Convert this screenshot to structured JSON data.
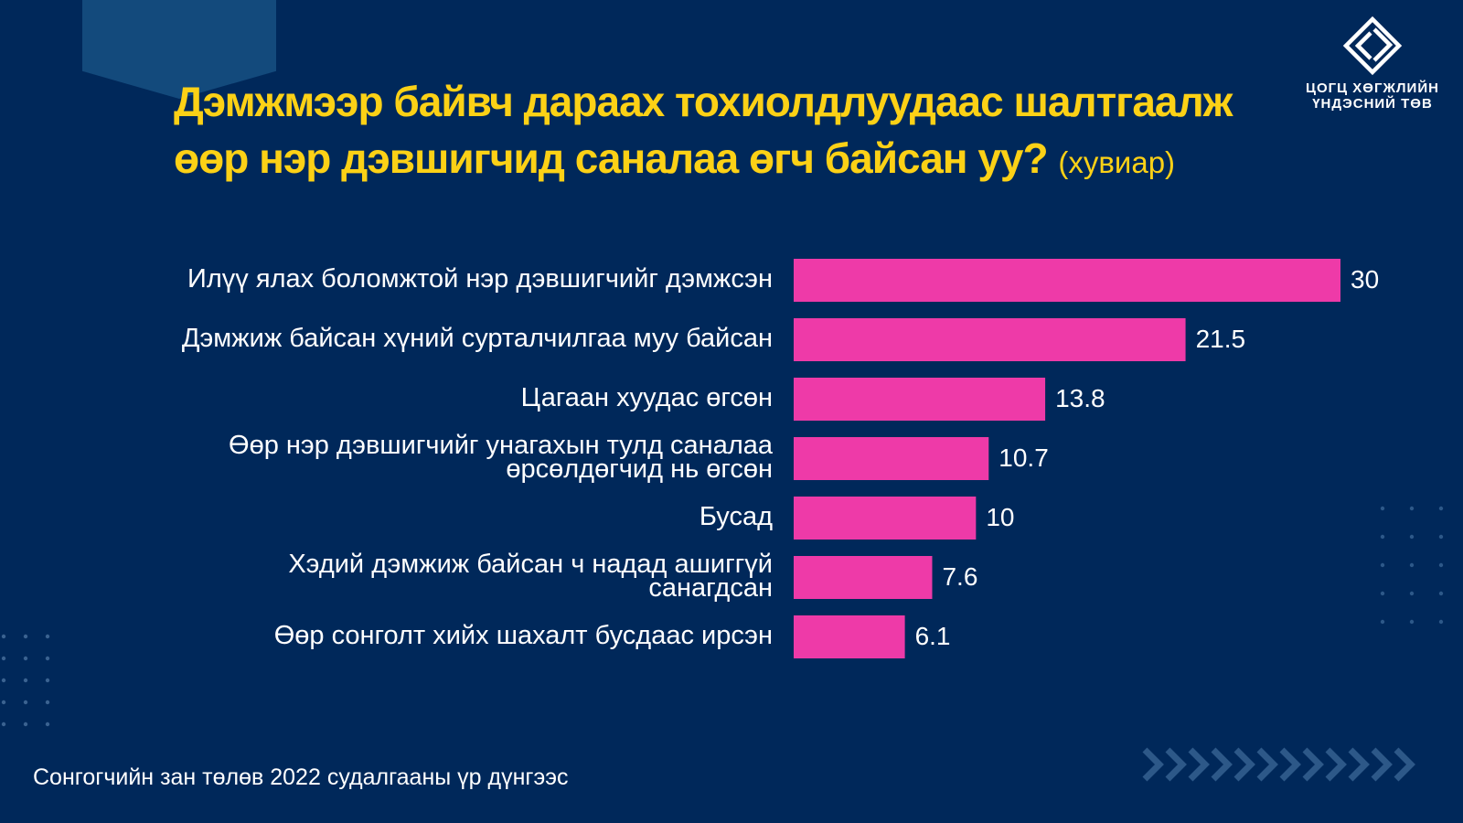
{
  "title": {
    "text": "Дэмжмээр байвч дараах тохиолдлуудаас шалтгаалж өөр нэр дэвшигчид саналаа өгч байсан уу?",
    "unit": "(хувиар)"
  },
  "logo": {
    "icon": "diamond-logo-icon",
    "text": "ЦОГЦ ХӨГЖЛИЙН\nҮНДЭСНИЙ ТӨВ"
  },
  "footer": {
    "source": "Сонгогчийн зан төлөв 2022 судалгааны үр дүнгээс"
  },
  "colors": {
    "background": "#00285a",
    "accent_tab": "#134a7c",
    "title": "#fcd116",
    "bar": "#ee3aa8",
    "text": "#ffffff",
    "decor": "#2d5888"
  },
  "decor": {
    "left_dots": "dot-grid",
    "right_dots": "dot-grid",
    "chevrons": "chevron-arrows-icon"
  },
  "chart_data": {
    "type": "bar",
    "orientation": "horizontal",
    "categories": [
      "Илүү ялах боломжтой нэр дэвшигчийг дэмжсэн",
      "Дэмжиж байсан хүний сурталчилгаа муу байсан",
      "Цагаан хуудас өгсөн",
      "Өөр нэр дэвшигчийг унагахын тулд саналаа өрсөлдөгчид нь өгсөн",
      "Бусад",
      "Хэдий дэмжиж байсан ч надад ашиггүй санагдсан",
      "Өөр сонголт хийх шахалт бусдаас ирсэн"
    ],
    "category_lines": [
      [
        "Илүү ялах боломжтой нэр дэвшигчийг дэмжсэн"
      ],
      [
        "Дэмжиж байсан хүний сурталчилгаа муу байсан"
      ],
      [
        "Цагаан хуудас өгсөн"
      ],
      [
        "Өөр нэр дэвшигчийг унагахын тулд саналаа",
        "өрсөлдөгчид нь өгсөн"
      ],
      [
        "Бусад"
      ],
      [
        "Хэдий дэмжиж байсан ч надад ашиггүй",
        "санагдсан"
      ],
      [
        "Өөр сонголт хийх шахалт бусдаас ирсэн"
      ]
    ],
    "values": [
      30,
      21.5,
      13.8,
      10.7,
      10,
      7.6,
      6.1
    ],
    "data_labels": [
      "30",
      "21.5",
      "13.8",
      "10.7",
      "10",
      "7.6",
      "6.1"
    ],
    "xlim": [
      0,
      30
    ],
    "grid": false,
    "legend": "none"
  }
}
